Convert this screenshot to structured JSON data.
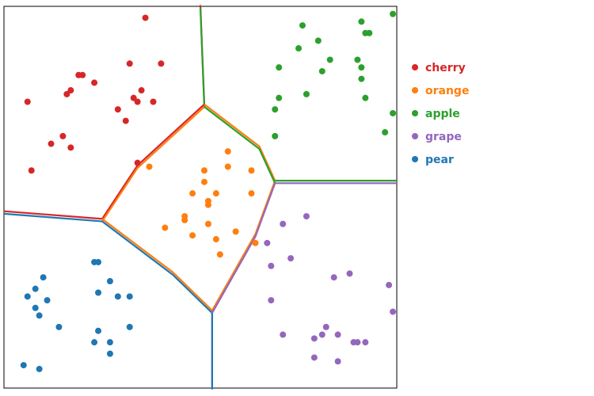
{
  "chart_data": {
    "type": "scatter",
    "title": "",
    "xlabel": "",
    "ylabel": "",
    "xlim": [
      0,
      10
    ],
    "ylim": [
      0,
      10
    ],
    "grid": false,
    "legend_position": "right",
    "series": [
      {
        "name": "cherry",
        "color": "#d62728",
        "points": [
          [
            3.6,
            9.7
          ],
          [
            3.2,
            8.5
          ],
          [
            4.0,
            8.5
          ],
          [
            1.9,
            8.2
          ],
          [
            2.0,
            8.2
          ],
          [
            2.3,
            8.0
          ],
          [
            3.5,
            7.8
          ],
          [
            1.6,
            7.7
          ],
          [
            1.7,
            7.8
          ],
          [
            3.3,
            7.6
          ],
          [
            3.4,
            7.5
          ],
          [
            3.8,
            7.5
          ],
          [
            0.6,
            7.5
          ],
          [
            2.9,
            7.3
          ],
          [
            3.1,
            7.0
          ],
          [
            1.5,
            6.6
          ],
          [
            1.2,
            6.4
          ],
          [
            1.7,
            6.3
          ],
          [
            3.4,
            5.9
          ],
          [
            0.7,
            5.7
          ]
        ]
      },
      {
        "name": "orange",
        "color": "#ff7f0e",
        "points": [
          [
            5.7,
            6.2
          ],
          [
            3.7,
            5.8
          ],
          [
            5.7,
            5.8
          ],
          [
            6.3,
            5.7
          ],
          [
            5.1,
            5.7
          ],
          [
            5.1,
            5.4
          ],
          [
            4.8,
            5.1
          ],
          [
            5.4,
            5.1
          ],
          [
            6.3,
            5.1
          ],
          [
            5.2,
            4.9
          ],
          [
            5.2,
            4.8
          ],
          [
            4.6,
            4.5
          ],
          [
            4.6,
            4.4
          ],
          [
            5.2,
            4.3
          ],
          [
            4.1,
            4.2
          ],
          [
            5.9,
            4.1
          ],
          [
            4.8,
            4.0
          ],
          [
            5.4,
            3.9
          ],
          [
            6.4,
            3.8
          ],
          [
            5.5,
            3.5
          ]
        ]
      },
      {
        "name": "apple",
        "color": "#2ca02c",
        "points": [
          [
            9.9,
            9.8
          ],
          [
            9.1,
            9.6
          ],
          [
            7.6,
            9.5
          ],
          [
            9.2,
            9.3
          ],
          [
            9.3,
            9.3
          ],
          [
            8.0,
            9.1
          ],
          [
            7.5,
            8.9
          ],
          [
            9.0,
            8.6
          ],
          [
            8.3,
            8.6
          ],
          [
            7.0,
            8.4
          ],
          [
            9.1,
            8.4
          ],
          [
            8.1,
            8.3
          ],
          [
            9.1,
            8.1
          ],
          [
            7.7,
            7.7
          ],
          [
            7.0,
            7.6
          ],
          [
            9.2,
            7.6
          ],
          [
            6.9,
            7.3
          ],
          [
            9.9,
            7.2
          ],
          [
            9.7,
            6.7
          ],
          [
            6.9,
            6.6
          ]
        ]
      },
      {
        "name": "grape",
        "color": "#9467bd",
        "points": [
          [
            7.7,
            4.5
          ],
          [
            7.1,
            4.3
          ],
          [
            6.7,
            3.8
          ],
          [
            7.3,
            3.4
          ],
          [
            6.8,
            3.2
          ],
          [
            8.8,
            3.0
          ],
          [
            8.4,
            2.9
          ],
          [
            9.8,
            2.7
          ],
          [
            6.8,
            2.3
          ],
          [
            9.9,
            2.0
          ],
          [
            8.2,
            1.6
          ],
          [
            7.1,
            1.4
          ],
          [
            8.1,
            1.4
          ],
          [
            8.5,
            1.4
          ],
          [
            7.9,
            1.3
          ],
          [
            8.9,
            1.2
          ],
          [
            9.0,
            1.2
          ],
          [
            9.2,
            1.2
          ],
          [
            7.9,
            0.8
          ],
          [
            8.5,
            0.7
          ]
        ]
      },
      {
        "name": "pear",
        "color": "#1f77b4",
        "points": [
          [
            2.3,
            3.3
          ],
          [
            2.4,
            3.3
          ],
          [
            1.0,
            2.9
          ],
          [
            2.7,
            2.8
          ],
          [
            0.8,
            2.6
          ],
          [
            2.4,
            2.5
          ],
          [
            0.6,
            2.4
          ],
          [
            2.9,
            2.4
          ],
          [
            3.2,
            2.4
          ],
          [
            1.1,
            2.3
          ],
          [
            0.8,
            2.1
          ],
          [
            0.9,
            1.9
          ],
          [
            1.4,
            1.6
          ],
          [
            2.4,
            1.5
          ],
          [
            3.2,
            1.6
          ],
          [
            2.3,
            1.2
          ],
          [
            2.7,
            1.2
          ],
          [
            2.7,
            0.9
          ],
          [
            0.5,
            0.6
          ],
          [
            0.9,
            0.5
          ]
        ]
      }
    ],
    "boundaries": [
      {
        "between": [
          "cherry",
          "apple"
        ],
        "colors": [
          "#d62728",
          "#2ca02c"
        ],
        "path": [
          [
            5.0,
            10.0
          ],
          [
            5.1,
            7.4
          ]
        ]
      },
      {
        "between": [
          "cherry",
          "orange"
        ],
        "colors": [
          "#d62728",
          "#ff7f0e"
        ],
        "path": [
          [
            5.1,
            7.4
          ],
          [
            3.4,
            5.8
          ],
          [
            2.5,
            4.4
          ]
        ]
      },
      {
        "between": [
          "cherry",
          "pear"
        ],
        "colors": [
          "#d62728",
          "#1f77b4"
        ],
        "path": [
          [
            0.0,
            4.6
          ],
          [
            2.5,
            4.4
          ]
        ]
      },
      {
        "between": [
          "orange",
          "pear"
        ],
        "colors": [
          "#ff7f0e",
          "#1f77b4"
        ],
        "path": [
          [
            2.5,
            4.4
          ],
          [
            4.3,
            3.0
          ],
          [
            5.3,
            2.0
          ]
        ]
      },
      {
        "between": [
          "orange",
          "grape"
        ],
        "colors": [
          "#ff7f0e",
          "#9467bd"
        ],
        "path": [
          [
            5.3,
            2.0
          ],
          [
            6.4,
            4.0
          ],
          [
            6.9,
            5.4
          ]
        ]
      },
      {
        "between": [
          "orange",
          "apple"
        ],
        "colors": [
          "#ff7f0e",
          "#2ca02c"
        ],
        "path": [
          [
            6.9,
            5.4
          ],
          [
            6.5,
            6.3
          ],
          [
            5.1,
            7.4
          ]
        ]
      },
      {
        "between": [
          "apple",
          "grape"
        ],
        "colors": [
          "#2ca02c",
          "#9467bd"
        ],
        "path": [
          [
            6.9,
            5.4
          ],
          [
            10.0,
            5.4
          ]
        ]
      },
      {
        "between": [
          "grape",
          "pear"
        ],
        "colors": [
          "#9467bd",
          "#1f77b4"
        ],
        "path": [
          [
            5.3,
            2.0
          ],
          [
            5.3,
            0.0
          ]
        ]
      }
    ]
  }
}
